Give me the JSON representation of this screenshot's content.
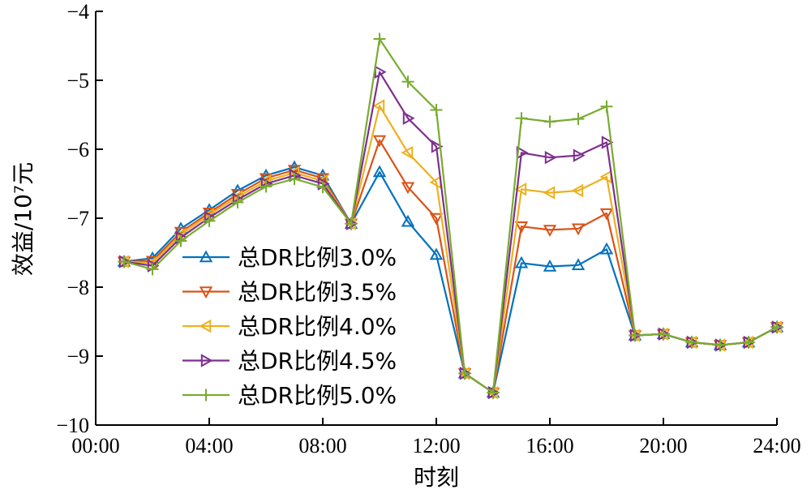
{
  "chart_data": {
    "type": "line",
    "xlabel": "时刻",
    "ylabel": "效益/10⁷元",
    "xlim": [
      0,
      24
    ],
    "ylim": [
      -10,
      -4
    ],
    "xticks": [
      0,
      4,
      8,
      12,
      16,
      20,
      24
    ],
    "xtick_labels": [
      "00:00",
      "04:00",
      "08:00",
      "12:00",
      "16:00",
      "20:00",
      "24:00"
    ],
    "yticks": [
      -10,
      -9,
      -8,
      -7,
      -6,
      -5,
      -4
    ],
    "ytick_labels": [
      "−10",
      "−9",
      "−8",
      "−7",
      "−6",
      "−5",
      "−4"
    ],
    "grid": false,
    "legend_position": "left",
    "x": [
      1,
      2,
      3,
      4,
      5,
      6,
      7,
      8,
      9,
      10,
      11,
      12,
      13,
      14,
      15,
      16,
      17,
      18,
      19,
      20,
      21,
      22,
      23,
      24
    ],
    "series": [
      {
        "name": "总DR比例3.0%",
        "color": "#0072BD",
        "marker": "triangle-up",
        "values": [
          -7.63,
          -7.58,
          -7.15,
          -6.88,
          -6.6,
          -6.38,
          -6.26,
          -6.38,
          -7.08,
          -6.33,
          -7.05,
          -7.53,
          -9.25,
          -9.53,
          -7.65,
          -7.7,
          -7.68,
          -7.45,
          -8.7,
          -8.68,
          -8.8,
          -8.84,
          -8.8,
          -8.58
        ]
      },
      {
        "name": "总DR比例3.5%",
        "color": "#D95319",
        "marker": "triangle-down",
        "values": [
          -7.63,
          -7.62,
          -7.2,
          -6.92,
          -6.65,
          -6.42,
          -6.3,
          -6.42,
          -7.08,
          -5.87,
          -6.55,
          -7.0,
          -9.25,
          -9.53,
          -7.12,
          -7.17,
          -7.15,
          -6.93,
          -8.7,
          -8.68,
          -8.8,
          -8.84,
          -8.8,
          -8.58
        ]
      },
      {
        "name": "总DR比例4.0%",
        "color": "#EDB120",
        "marker": "triangle-left",
        "values": [
          -7.63,
          -7.65,
          -7.24,
          -6.95,
          -6.69,
          -6.46,
          -6.34,
          -6.46,
          -7.08,
          -5.37,
          -6.05,
          -6.48,
          -9.25,
          -9.53,
          -6.58,
          -6.63,
          -6.6,
          -6.4,
          -8.7,
          -8.68,
          -8.8,
          -8.84,
          -8.8,
          -8.58
        ]
      },
      {
        "name": "总DR比例4.5%",
        "color": "#7E2F8E",
        "marker": "triangle-right",
        "values": [
          -7.63,
          -7.69,
          -7.28,
          -6.99,
          -6.73,
          -6.5,
          -6.38,
          -6.5,
          -7.08,
          -4.88,
          -5.55,
          -5.96,
          -9.25,
          -9.53,
          -6.05,
          -6.12,
          -6.09,
          -5.9,
          -8.7,
          -8.68,
          -8.8,
          -8.84,
          -8.8,
          -8.58
        ]
      },
      {
        "name": "总DR比例5.0%",
        "color": "#77AC30",
        "marker": "plus",
        "values": [
          -7.63,
          -7.74,
          -7.33,
          -7.04,
          -6.77,
          -6.54,
          -6.43,
          -6.55,
          -7.08,
          -4.4,
          -5.02,
          -5.43,
          -9.25,
          -9.53,
          -5.55,
          -5.6,
          -5.56,
          -5.38,
          -8.7,
          -8.68,
          -8.8,
          -8.84,
          -8.8,
          -8.58
        ]
      }
    ]
  }
}
